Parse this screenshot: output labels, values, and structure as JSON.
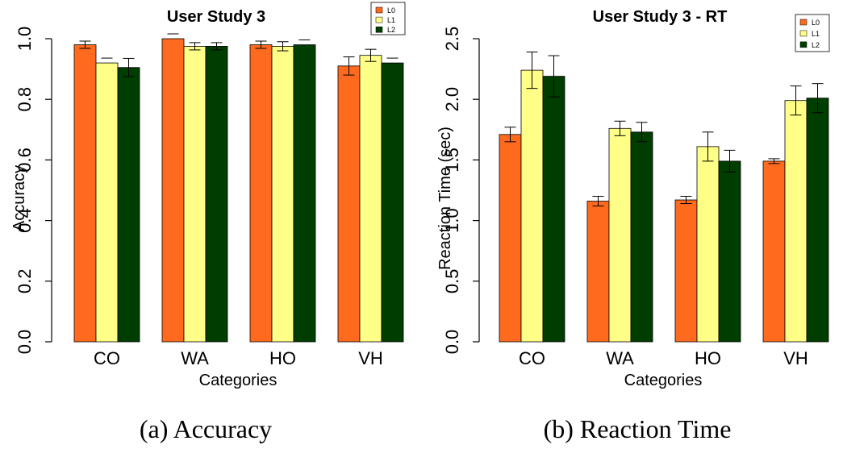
{
  "chart_data": [
    {
      "type": "bar",
      "title": "User Study 3",
      "xlabel": "Categories",
      "ylabel": "Accuracy",
      "categories": [
        "CO",
        "WA",
        "HO",
        "VH"
      ],
      "ylim": [
        0,
        1.0
      ],
      "yticks": [
        "0.0",
        "0.2",
        "0.4",
        "0.6",
        "0.8",
        "1.0"
      ],
      "legend_position": "top-right",
      "series": [
        {
          "name": "L0",
          "color": "#ff6a1f",
          "values": [
            0.98,
            1.0,
            0.98,
            0.91
          ],
          "err": [
            0.012,
            0.0,
            0.012,
            0.03
          ]
        },
        {
          "name": "L1",
          "color": "#ffff88",
          "values": [
            0.92,
            0.975,
            0.975,
            0.945
          ],
          "err": [
            0.0,
            0.012,
            0.015,
            0.02
          ]
        },
        {
          "name": "L2",
          "color": "#003d00",
          "values": [
            0.905,
            0.975,
            0.98,
            0.92
          ],
          "err": [
            0.03,
            0.012,
            0.0,
            0.0
          ]
        }
      ],
      "caption": "(a)  Accuracy"
    },
    {
      "type": "bar",
      "title": "User Study 3 - RT",
      "xlabel": "Categories",
      "ylabel": "Reaction Time (sec)",
      "categories": [
        "CO",
        "WA",
        "HO",
        "VH"
      ],
      "ylim": [
        0,
        2.5
      ],
      "yticks": [
        "0.0",
        "0.5",
        "1.0",
        "1.5",
        "2.0",
        "2.5"
      ],
      "legend_position": "top-right",
      "series": [
        {
          "name": "L0",
          "color": "#ff6a1f",
          "values": [
            1.71,
            1.16,
            1.17,
            1.49
          ],
          "err": [
            0.06,
            0.04,
            0.03,
            0.02
          ]
        },
        {
          "name": "L1",
          "color": "#ffff88",
          "values": [
            2.24,
            1.76,
            1.61,
            1.99
          ],
          "err": [
            0.15,
            0.06,
            0.12,
            0.12
          ]
        },
        {
          "name": "L2",
          "color": "#003d00",
          "values": [
            2.19,
            1.73,
            1.49,
            2.01
          ],
          "err": [
            0.17,
            0.08,
            0.09,
            0.12
          ]
        }
      ],
      "caption": "(b)  Reaction Time"
    }
  ]
}
